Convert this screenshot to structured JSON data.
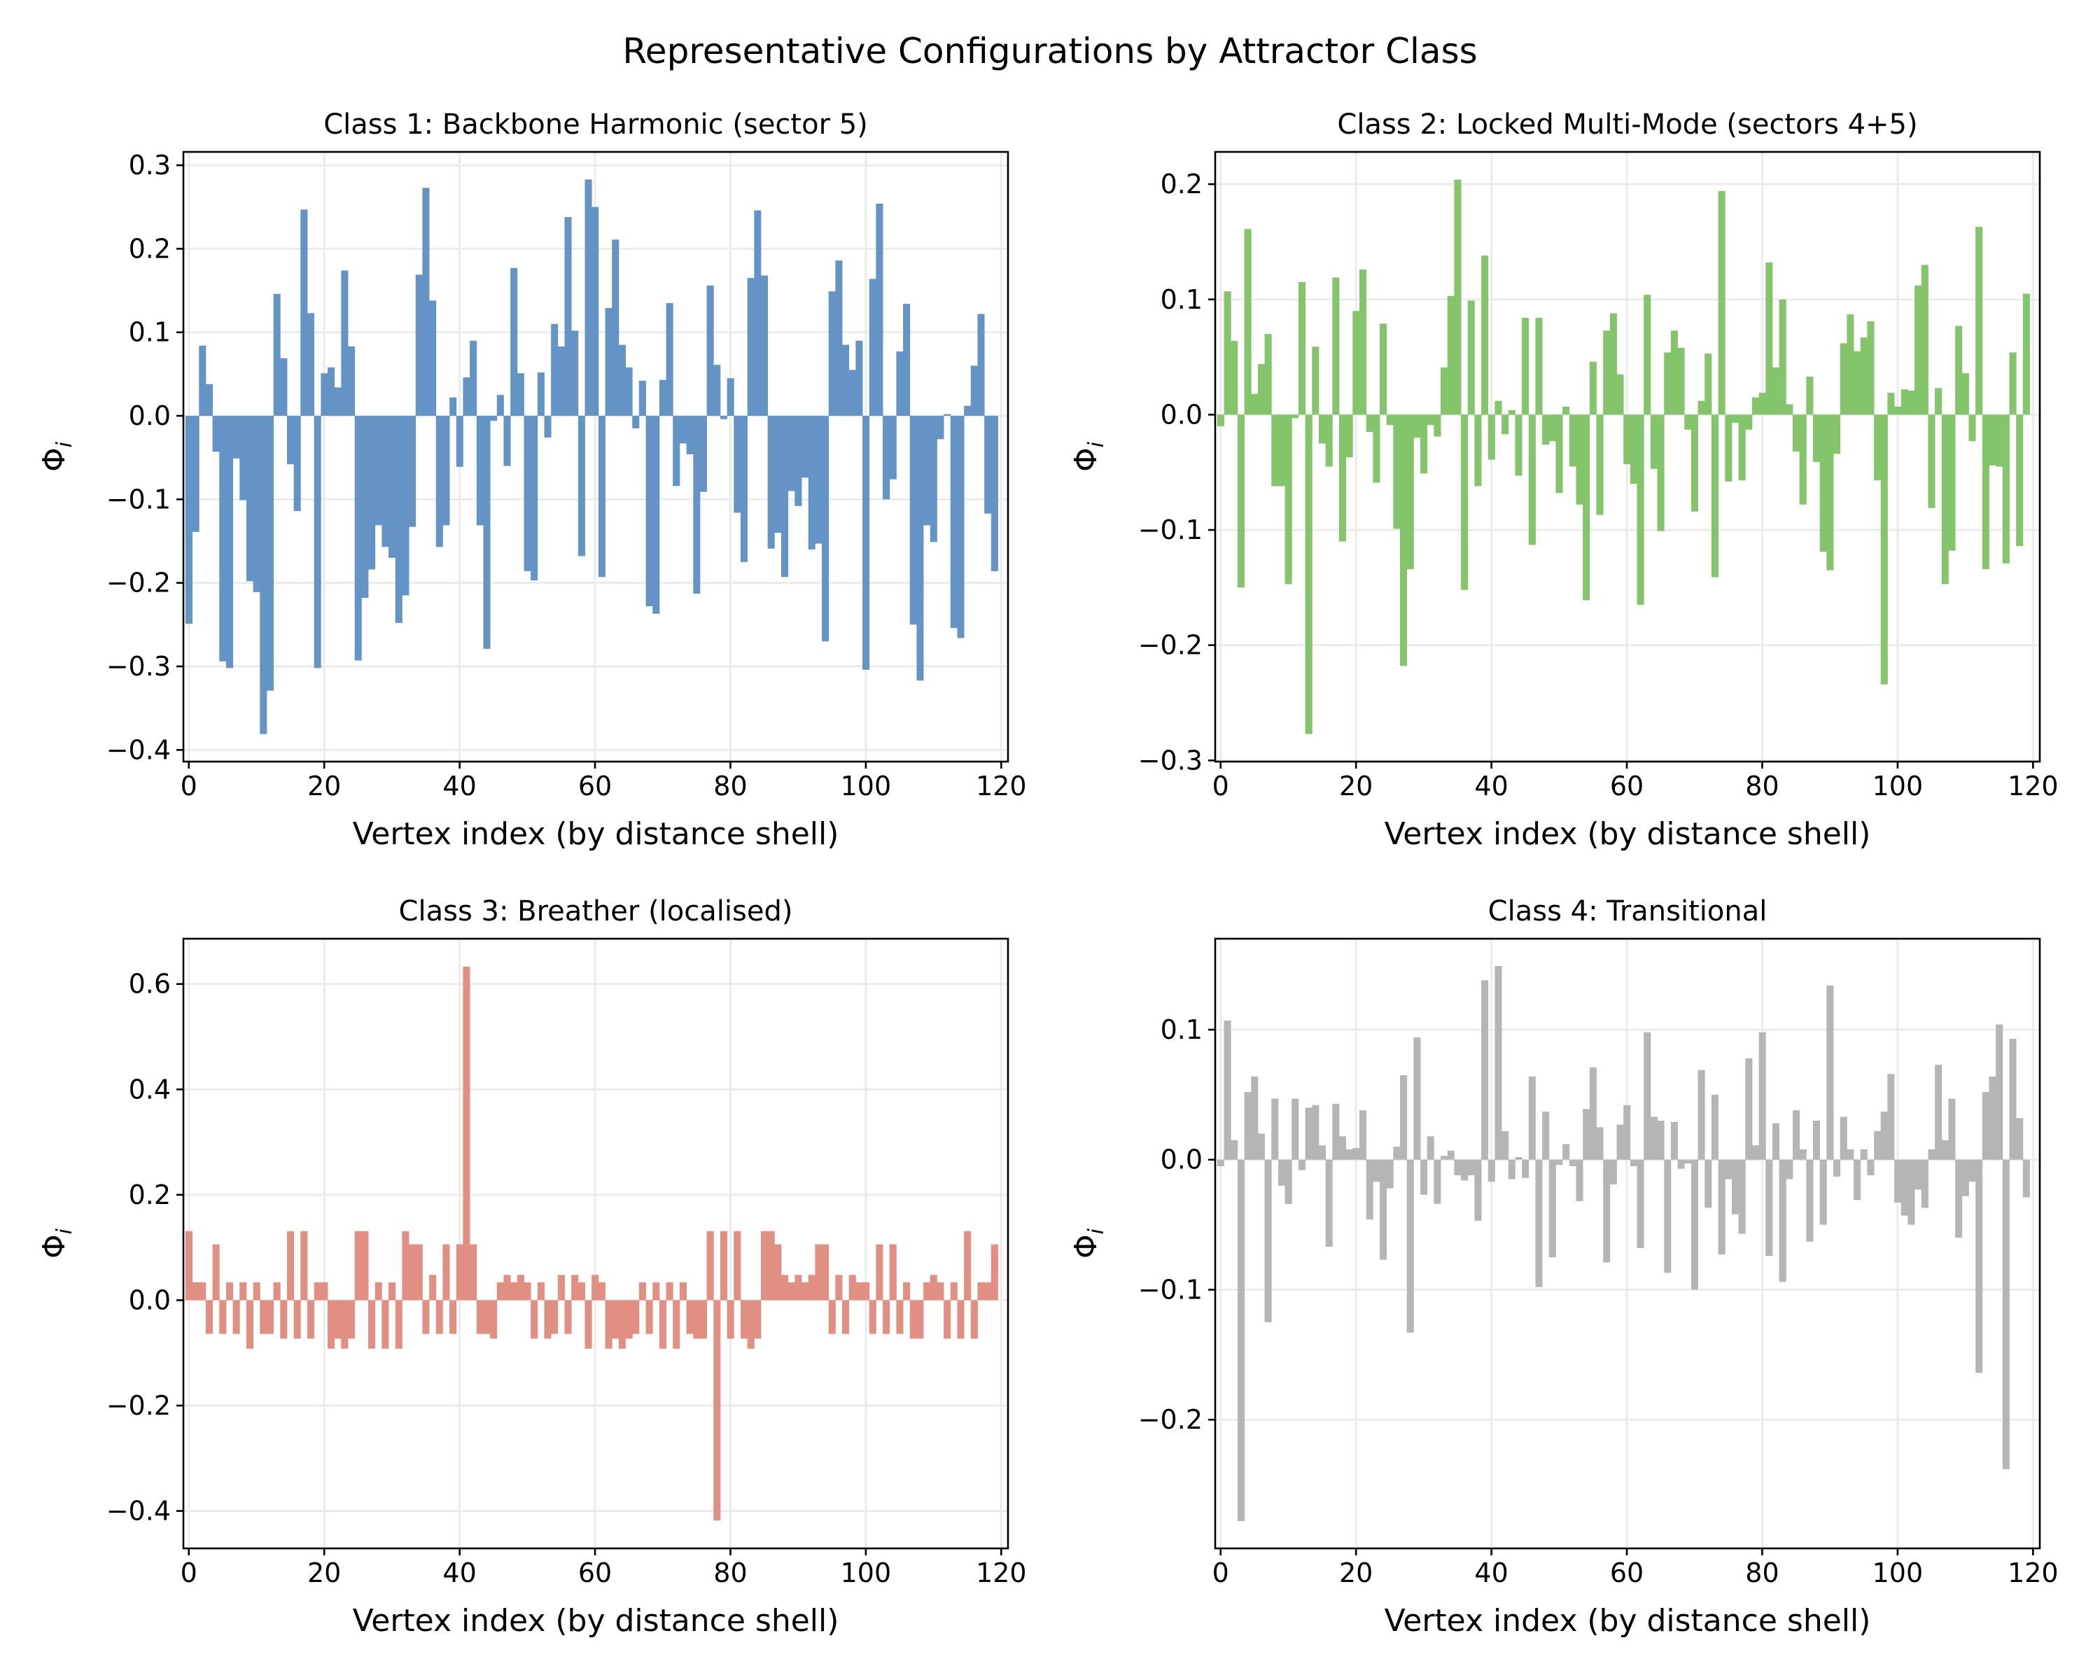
{
  "suptitle": "Representative Configurations by Attractor Class",
  "chart_data": [
    {
      "type": "bar",
      "title": "Class 1: Backbone Harmonic (sector 5)",
      "xlabel": "Vertex index (by distance shell)",
      "ylabel": "Φ",
      "ylabel_sub": "i",
      "color": "#6494c6",
      "grid": true,
      "xlim": [
        -0.8,
        121
      ],
      "ylim": [
        -0.414,
        0.316
      ],
      "xticks": [
        0,
        20,
        40,
        60,
        80,
        100,
        120
      ],
      "xtick_labels": [
        "0",
        "20",
        "40",
        "60",
        "80",
        "100",
        "120"
      ],
      "yticks": [
        -0.4,
        -0.3,
        -0.2,
        -0.1,
        0.0,
        0.1,
        0.2,
        0.3
      ],
      "ytick_labels": [
        "−0.4",
        "−0.3",
        "−0.2",
        "−0.1",
        "0.0",
        "0.1",
        "0.2",
        "0.3"
      ],
      "values": [
        -0.249,
        -0.139,
        0.084,
        0.038,
        -0.043,
        -0.294,
        -0.302,
        -0.051,
        -0.101,
        -0.198,
        -0.211,
        -0.381,
        -0.329,
        0.146,
        0.069,
        -0.058,
        -0.114,
        0.247,
        0.123,
        -0.302,
        0.051,
        0.058,
        0.034,
        0.174,
        0.083,
        -0.293,
        -0.218,
        -0.184,
        -0.131,
        -0.157,
        -0.17,
        -0.248,
        -0.215,
        -0.133,
        0.169,
        0.273,
        0.138,
        -0.157,
        -0.131,
        0.022,
        -0.061,
        0.046,
        0.09,
        -0.131,
        -0.279,
        -0.006,
        0.025,
        -0.06,
        0.177,
        0.051,
        -0.186,
        -0.197,
        0.052,
        -0.026,
        0.11,
        0.083,
        0.238,
        0.102,
        -0.168,
        0.283,
        0.25,
        -0.193,
        0.129,
        0.211,
        0.085,
        0.058,
        -0.015,
        0.042,
        -0.228,
        -0.237,
        0.043,
        0.135,
        -0.084,
        -0.033,
        -0.046,
        -0.213,
        -0.091,
        0.156,
        0.061,
        -0.004,
        0.045,
        -0.116,
        -0.175,
        0.165,
        0.246,
        0.168,
        -0.159,
        -0.14,
        -0.193,
        -0.09,
        -0.108,
        -0.074,
        -0.16,
        -0.153,
        -0.27,
        0.149,
        0.186,
        0.085,
        0.055,
        0.09,
        -0.304,
        0.164,
        0.254,
        -0.1,
        -0.076,
        0.077,
        0.134,
        -0.25,
        -0.317,
        -0.131,
        -0.151,
        -0.028,
        0.002,
        -0.254,
        -0.266,
        0.012,
        0.06,
        0.122,
        -0.117,
        -0.186
      ]
    },
    {
      "type": "bar",
      "title": "Class 2: Locked Multi-Mode (sectors 4+5)",
      "xlabel": "Vertex index (by distance shell)",
      "ylabel": "Φ",
      "ylabel_sub": "i",
      "color": "#84c46a",
      "grid": true,
      "xlim": [
        -0.8,
        121
      ],
      "ylim": [
        -0.301,
        0.228
      ],
      "xticks": [
        0,
        20,
        40,
        60,
        80,
        100,
        120
      ],
      "xtick_labels": [
        "0",
        "20",
        "40",
        "60",
        "80",
        "100",
        "120"
      ],
      "yticks": [
        -0.3,
        -0.2,
        -0.1,
        0.0,
        0.1,
        0.2
      ],
      "ytick_labels": [
        "−0.3",
        "−0.2",
        "−0.1",
        "0.0",
        "0.1",
        "0.2"
      ],
      "values": [
        -0.01,
        0.107,
        0.064,
        -0.15,
        0.161,
        0.018,
        0.044,
        0.07,
        -0.062,
        -0.062,
        -0.147,
        -0.003,
        0.115,
        -0.277,
        0.059,
        -0.025,
        -0.045,
        0.119,
        -0.11,
        -0.037,
        0.09,
        0.126,
        -0.015,
        -0.059,
        0.079,
        -0.009,
        -0.099,
        -0.218,
        -0.134,
        -0.02,
        -0.051,
        -0.009,
        -0.019,
        0.041,
        0.103,
        0.204,
        -0.152,
        0.099,
        -0.062,
        0.138,
        -0.039,
        0.012,
        -0.017,
        0.004,
        -0.053,
        0.084,
        -0.113,
        0.084,
        -0.026,
        -0.023,
        -0.068,
        0.007,
        -0.045,
        -0.078,
        -0.161,
        0.046,
        -0.087,
        0.073,
        0.088,
        0.035,
        -0.043,
        -0.06,
        -0.165,
        0.104,
        -0.047,
        -0.101,
        0.054,
        0.073,
        0.058,
        -0.013,
        -0.084,
        0.012,
        0.053,
        -0.141,
        0.194,
        -0.058,
        -0.007,
        -0.057,
        -0.013,
        0.015,
        0.019,
        0.132,
        0.041,
        0.1,
        0.009,
        -0.032,
        -0.078,
        0.033,
        -0.041,
        -0.119,
        -0.135,
        -0.034,
        0.062,
        0.087,
        0.055,
        0.067,
        0.081,
        -0.057,
        -0.234,
        0.019,
        0.007,
        0.022,
        0.021,
        0.112,
        0.13,
        -0.081,
        0.023,
        -0.147,
        -0.118,
        0.077,
        0.036,
        -0.023,
        0.163,
        -0.134,
        -0.044,
        -0.045,
        -0.129,
        0.054,
        -0.114,
        0.105
      ]
    },
    {
      "type": "bar",
      "title": "Class 3: Breather (localised)",
      "xlabel": "Vertex index (by distance shell)",
      "ylabel": "Φ",
      "ylabel_sub": "i",
      "color": "#e08f82",
      "grid": true,
      "xlim": [
        -0.8,
        121
      ],
      "ylim": [
        -0.471,
        0.686
      ],
      "xticks": [
        0,
        20,
        40,
        60,
        80,
        100,
        120
      ],
      "xtick_labels": [
        "0",
        "20",
        "40",
        "60",
        "80",
        "100",
        "120"
      ],
      "yticks": [
        -0.4,
        -0.2,
        0.0,
        0.2,
        0.4,
        0.6
      ],
      "ytick_labels": [
        "−0.4",
        "−0.2",
        "0.0",
        "0.2",
        "0.4",
        "0.6"
      ],
      "values": [
        0.131,
        0.034,
        0.034,
        -0.064,
        0.106,
        -0.064,
        0.034,
        -0.064,
        0.034,
        -0.092,
        0.034,
        -0.064,
        -0.064,
        0.034,
        -0.073,
        0.131,
        -0.073,
        0.131,
        -0.073,
        0.034,
        0.034,
        -0.092,
        -0.073,
        -0.092,
        -0.073,
        0.131,
        0.131,
        -0.092,
        0.034,
        -0.092,
        0.034,
        -0.092,
        0.131,
        0.106,
        0.106,
        -0.064,
        0.048,
        -0.064,
        0.106,
        -0.064,
        0.106,
        0.633,
        0.106,
        -0.064,
        -0.064,
        -0.073,
        0.034,
        0.048,
        0.034,
        0.048,
        0.034,
        -0.073,
        0.034,
        -0.073,
        -0.064,
        0.048,
        -0.064,
        0.048,
        0.034,
        -0.092,
        0.048,
        0.034,
        -0.092,
        -0.073,
        -0.092,
        -0.073,
        -0.064,
        0.034,
        -0.064,
        0.034,
        -0.092,
        0.034,
        -0.092,
        0.034,
        -0.064,
        -0.073,
        -0.073,
        0.131,
        -0.418,
        0.131,
        -0.073,
        0.131,
        -0.073,
        -0.092,
        -0.073,
        0.131,
        0.131,
        0.106,
        0.048,
        0.034,
        0.048,
        0.034,
        0.048,
        0.106,
        0.106,
        -0.064,
        0.048,
        -0.064,
        0.048,
        0.034,
        0.034,
        -0.064,
        0.106,
        -0.064,
        0.106,
        -0.064,
        0.034,
        -0.073,
        -0.073,
        0.034,
        0.048,
        0.034,
        -0.073,
        0.034,
        -0.073,
        0.131,
        -0.073,
        0.034,
        0.034,
        0.106
      ]
    },
    {
      "type": "bar",
      "title": "Class 4: Transitional",
      "xlabel": "Vertex index (by distance shell)",
      "ylabel": "Φ",
      "ylabel_sub": "i",
      "color": "#b5b5b5",
      "grid": true,
      "xlim": [
        -0.8,
        121
      ],
      "ylim": [
        -0.299,
        0.17
      ],
      "xticks": [
        0,
        20,
        40,
        60,
        80,
        100,
        120
      ],
      "xtick_labels": [
        "0",
        "20",
        "40",
        "60",
        "80",
        "100",
        "120"
      ],
      "yticks": [
        -0.2,
        -0.1,
        0.0,
        0.1
      ],
      "ytick_labels": [
        "−0.2",
        "−0.1",
        "0.0",
        "0.1"
      ],
      "values": [
        -0.005,
        0.107,
        0.015,
        -0.278,
        0.052,
        0.064,
        0.02,
        -0.125,
        0.047,
        -0.02,
        -0.034,
        0.047,
        -0.008,
        0.04,
        0.042,
        0.011,
        -0.067,
        0.043,
        0.018,
        0.008,
        0.009,
        0.038,
        -0.046,
        -0.017,
        -0.077,
        -0.022,
        0.01,
        0.065,
        -0.133,
        0.094,
        -0.027,
        0.018,
        -0.034,
        0.003,
        0.007,
        -0.012,
        -0.016,
        -0.012,
        -0.047,
        0.138,
        -0.017,
        0.149,
        0.022,
        -0.015,
        0.002,
        -0.014,
        0.064,
        -0.098,
        0.037,
        -0.075,
        -0.004,
        0.012,
        -0.005,
        -0.032,
        0.039,
        0.071,
        0.025,
        -0.079,
        -0.019,
        0.027,
        0.042,
        -0.005,
        -0.068,
        0.098,
        0.033,
        0.03,
        -0.087,
        0.029,
        -0.007,
        -0.003,
        -0.1,
        0.069,
        -0.037,
        0.05,
        -0.073,
        -0.015,
        -0.042,
        -0.057,
        0.078,
        0.011,
        0.098,
        -0.074,
        0.028,
        -0.094,
        -0.015,
        0.038,
        0.008,
        -0.063,
        0.03,
        -0.05,
        0.134,
        -0.013,
        0.033,
        0.008,
        -0.031,
        0.008,
        -0.012,
        0.022,
        0.037,
        0.066,
        -0.033,
        -0.043,
        -0.05,
        -0.023,
        -0.037,
        0.008,
        0.073,
        0.015,
        0.047,
        -0.06,
        -0.028,
        -0.017,
        -0.164,
        0.052,
        0.064,
        0.104,
        -0.238,
        0.093,
        0.032,
        -0.029
      ]
    }
  ]
}
